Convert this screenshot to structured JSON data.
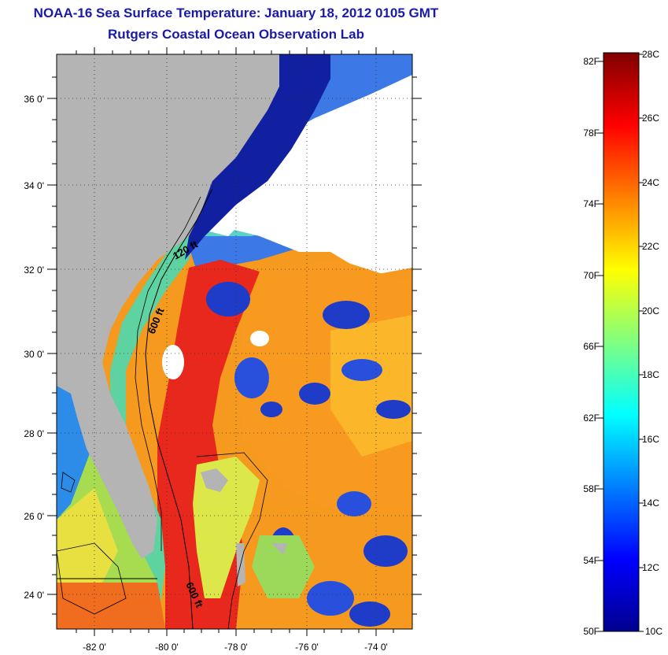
{
  "title": "NOAA-16 Sea Surface Temperature:  January 18, 2012 0105 GMT",
  "subtitle": "Rutgers Coastal Ocean Observation Lab",
  "map": {
    "lat_ticks": [
      "36 0'",
      "34 0'",
      "32 0'",
      "30 0'",
      "28 0'",
      "26 0'",
      "24 0'"
    ],
    "lon_ticks": [
      "-82 0'",
      "-80 0'",
      "-78 0'",
      "-76 0'",
      "-74 0'"
    ],
    "contour_labels": [
      "120 ft",
      "600 ft",
      "600 ft"
    ],
    "land_color": "#b4b4b4",
    "cloud_color": "#ffffff"
  },
  "colorbar": {
    "fahrenheit": [
      "82F",
      "78F",
      "74F",
      "70F",
      "66F",
      "62F",
      "58F",
      "54F",
      "50F"
    ],
    "celsius": [
      "28C",
      "26C",
      "24C",
      "22C",
      "20C",
      "18C",
      "16C",
      "14C",
      "12C",
      "10C"
    ],
    "range_c": [
      10,
      28
    ],
    "colormap": "jet"
  }
}
